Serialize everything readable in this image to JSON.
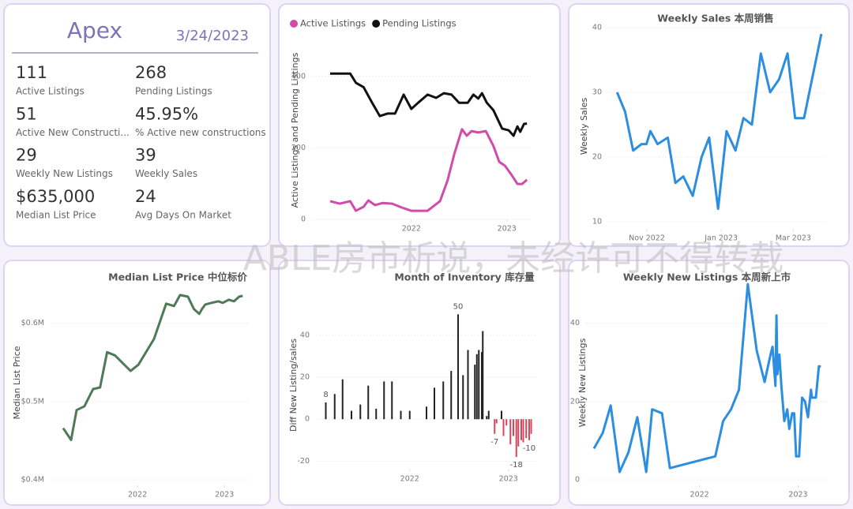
{
  "kpi": {
    "title": "Apex",
    "date": "3/24/2023",
    "items": [
      {
        "value": "111",
        "label": "Active Listings"
      },
      {
        "value": "268",
        "label": "Pending Listings"
      },
      {
        "value": "51",
        "label": "Active New Constructi..."
      },
      {
        "value": "45.95%",
        "label": "% Active new constructions"
      },
      {
        "value": "29",
        "label": "Weekly New Listings"
      },
      {
        "value": "39",
        "label": "Weekly Sales"
      },
      {
        "value": "$635,000",
        "label": "Median List Price"
      },
      {
        "value": "24",
        "label": "Avg Days On Market"
      }
    ]
  },
  "watermark": "ABLE房市析说，未经许可不得转载",
  "chart_data": [
    {
      "type": "line",
      "ylabel": "Active Listings and Pending Listings",
      "legend": "top-left",
      "grid": true,
      "xlim": [
        2020.96,
        2023.25
      ],
      "ylim": [
        0,
        490
      ],
      "xticks": [
        2022,
        2023
      ],
      "yticks": [
        0,
        200,
        400
      ],
      "series": [
        {
          "name": "Active Listings",
          "color": "#d04ca8",
          "x": [
            2021.15,
            2021.25,
            2021.36,
            2021.42,
            2021.5,
            2021.55,
            2021.62,
            2021.7,
            2021.8,
            2021.9,
            2022.0,
            2022.17,
            2022.3,
            2022.38,
            2022.45,
            2022.53,
            2022.58,
            2022.63,
            2022.7,
            2022.78,
            2022.86,
            2022.92,
            2022.98,
            2023.05,
            2023.11,
            2023.16,
            2023.21
          ],
          "values": [
            51,
            44,
            51,
            24,
            35,
            53,
            40,
            46,
            44,
            33,
            24,
            24,
            51,
            110,
            183,
            252,
            234,
            247,
            243,
            247,
            205,
            161,
            150,
            124,
            99,
            99,
            111
          ]
        },
        {
          "name": "Pending Listings",
          "color": "#111111",
          "x": [
            2021.15,
            2021.36,
            2021.42,
            2021.5,
            2021.59,
            2021.67,
            2021.75,
            2021.83,
            2021.92,
            2022.0,
            2022.07,
            2022.17,
            2022.26,
            2022.34,
            2022.42,
            2022.5,
            2022.59,
            2022.65,
            2022.7,
            2022.74,
            2022.79,
            2022.86,
            2022.95,
            2023.02,
            2023.07,
            2023.11,
            2023.14,
            2023.18,
            2023.21
          ],
          "values": [
            408,
            408,
            382,
            370,
            326,
            289,
            296,
            296,
            349,
            309,
            326,
            349,
            340,
            353,
            349,
            326,
            326,
            349,
            338,
            353,
            326,
            305,
            254,
            249,
            234,
            260,
            245,
            267,
            268
          ]
        }
      ]
    },
    {
      "type": "line",
      "title": "Weekly Sales 本周销售",
      "ylabel": "Weekly Sales",
      "color": "#2b8ee0",
      "grid": true,
      "xlim": [
        2022.746,
        2023.234
      ],
      "ylim": [
        8.9,
        40.6
      ],
      "xticks": [
        {
          "value": 2022.833,
          "label": "Nov 2022"
        },
        {
          "value": 2023.0,
          "label": "Jan 2023"
        },
        {
          "value": 2023.162,
          "label": "Mar 2023"
        }
      ],
      "yticks": [
        10,
        20,
        30,
        40
      ],
      "x": [
        2022.766,
        2022.784,
        2022.802,
        2022.821,
        2022.832,
        2022.841,
        2022.857,
        2022.88,
        2022.897,
        2022.915,
        2022.936,
        2022.956,
        2022.973,
        2022.993,
        2023.012,
        2023.032,
        2023.05,
        2023.069,
        2023.089,
        2023.11,
        2023.13,
        2023.149,
        2023.166,
        2023.186,
        2023.225
      ],
      "values": [
        30,
        27,
        21,
        22,
        22,
        24,
        22,
        23,
        16,
        17,
        14,
        20,
        23,
        12,
        24,
        21,
        26,
        25,
        36,
        30,
        32,
        36,
        26,
        26,
        39
      ]
    },
    {
      "type": "line",
      "title": "Median List Price  中位标价",
      "ylabel": "Median List Price",
      "color": "#4f7a57",
      "grid": true,
      "xlim": [
        2021.0,
        2023.28
      ],
      "ylim": [
        393000,
        650000
      ],
      "xticks": [
        2022,
        2023
      ],
      "yticks": [
        {
          "value": 400000,
          "label": "$0.4M"
        },
        {
          "value": 500000,
          "label": "$0.5M"
        },
        {
          "value": 600000,
          "label": "$0.6M"
        }
      ],
      "x": [
        2021.145,
        2021.236,
        2021.3,
        2021.39,
        2021.49,
        2021.57,
        2021.65,
        2021.74,
        2021.92,
        2022.01,
        2022.19,
        2022.33,
        2022.42,
        2022.49,
        2022.58,
        2022.65,
        2022.71,
        2022.74,
        2022.78,
        2022.85,
        2022.93,
        2022.98,
        2023.05,
        2023.11,
        2023.17,
        2023.21
      ],
      "values": [
        466000,
        451000,
        489000,
        494000,
        516000,
        518000,
        563000,
        559000,
        539000,
        547000,
        580000,
        625000,
        622000,
        636000,
        634000,
        618000,
        612000,
        618000,
        624000,
        626000,
        628000,
        626000,
        630000,
        628000,
        634000,
        635000
      ]
    },
    {
      "type": "bar",
      "title": "Month of Inventory 库存量",
      "ylabel": "Diff New Listing/sales",
      "color": "#222222",
      "negative_color": "#d9465a",
      "grid": true,
      "xlim": [
        2021.05,
        2023.29
      ],
      "ylim": [
        -24,
        55
      ],
      "xticks": [
        2022,
        2023
      ],
      "yticks": [
        -20,
        0,
        20,
        40
      ],
      "x": [
        2021.15,
        2021.24,
        2021.32,
        2021.41,
        2021.5,
        2021.58,
        2021.66,
        2021.74,
        2021.82,
        2021.91,
        2022.0,
        2022.17,
        2022.25,
        2022.34,
        2022.42,
        2022.49,
        2022.54,
        2022.59,
        2022.66,
        2022.68,
        2022.7,
        2022.73,
        2022.74,
        2022.78,
        2022.8,
        2022.86,
        2022.88,
        2022.93,
        2022.95,
        2022.98,
        2023.02,
        2023.05,
        2023.08,
        2023.1,
        2023.13,
        2023.15,
        2023.18,
        2023.21,
        2023.23
      ],
      "values": [
        8,
        12,
        19,
        4,
        7,
        16,
        5,
        18,
        18,
        4,
        4,
        6,
        15,
        18,
        23,
        50,
        21,
        33,
        26,
        31,
        33,
        32,
        42,
        1.5,
        4,
        -7,
        -2,
        4,
        -8,
        -3,
        -12,
        -8,
        -18,
        -13,
        -10,
        -11,
        -9,
        -10,
        -7
      ],
      "value_labels": [
        "8",
        null,
        null,
        null,
        null,
        null,
        null,
        null,
        null,
        null,
        null,
        null,
        null,
        null,
        null,
        "50",
        null,
        null,
        null,
        null,
        null,
        null,
        null,
        null,
        null,
        "-7",
        null,
        null,
        null,
        null,
        null,
        null,
        "-18",
        null,
        null,
        null,
        null,
        "-10",
        null
      ]
    },
    {
      "type": "line",
      "title": "Weekly New Listings  本周新上市",
      "ylabel": "Weekly New Listings",
      "color": "#2b8ee0",
      "grid": true,
      "xlim": [
        2020.85,
        2023.3
      ],
      "ylim": [
        -1.4,
        51
      ],
      "xticks": [
        2022,
        2023
      ],
      "yticks": [
        0,
        20,
        40
      ],
      "x": [
        2020.93,
        2021.02,
        2021.1,
        2021.19,
        2021.28,
        2021.37,
        2021.46,
        2021.52,
        2021.62,
        2021.7,
        2022.16,
        2022.24,
        2022.32,
        2022.4,
        2022.49,
        2022.58,
        2022.66,
        2022.72,
        2022.74,
        2022.77,
        2022.78,
        2022.79,
        2022.81,
        2022.83,
        2022.86,
        2022.89,
        2022.91,
        2022.94,
        2022.96,
        2022.98,
        2023.01,
        2023.04,
        2023.07,
        2023.1,
        2023.13,
        2023.14,
        2023.18,
        2023.21,
        2023.23
      ],
      "values": [
        8,
        12,
        19,
        2,
        7,
        16,
        2,
        18,
        17,
        3,
        6,
        15,
        18,
        23,
        50,
        33,
        25,
        32,
        34,
        24,
        42,
        27,
        32,
        24,
        15,
        18,
        13,
        17,
        17,
        6,
        6,
        21,
        20,
        16,
        23,
        21,
        21,
        29,
        29
      ]
    }
  ]
}
